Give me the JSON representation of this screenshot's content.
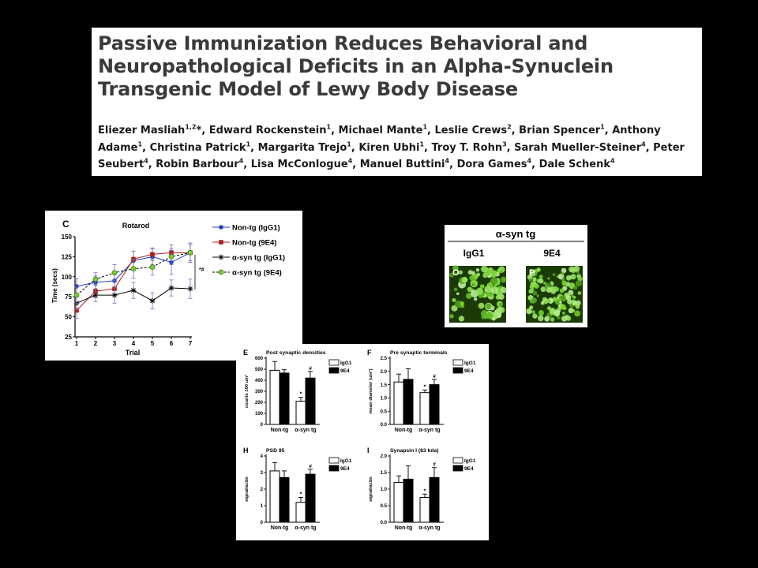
{
  "paper": {
    "title": "Passive Immunization Reduces Behavioral and Neuropathological Deficits in an Alpha-Synuclein Transgenic Model of Lewy Body Disease",
    "authors": [
      {
        "name": "Eliezer Masliah",
        "aff": "1,2",
        "mark": "*"
      },
      {
        "name": "Edward Rockenstein",
        "aff": "1"
      },
      {
        "name": "Michael Mante",
        "aff": "1"
      },
      {
        "name": "Leslie Crews",
        "aff": "2"
      },
      {
        "name": "Brian Spencer",
        "aff": "1"
      },
      {
        "name": "Anthony Adame",
        "aff": "1"
      },
      {
        "name": "Christina Patrick",
        "aff": "1"
      },
      {
        "name": "Margarita Trejo",
        "aff": "1"
      },
      {
        "name": "Kiren Ubhi",
        "aff": "1"
      },
      {
        "name": "Troy T. Rohn",
        "aff": "3"
      },
      {
        "name": "Sarah Mueller-Steiner",
        "aff": "4"
      },
      {
        "name": "Peter Seubert",
        "aff": "4"
      },
      {
        "name": "Robin Barbour",
        "aff": "4"
      },
      {
        "name": "Lisa McConlogue",
        "aff": "4"
      },
      {
        "name": "Manuel Buttini",
        "aff": "4"
      },
      {
        "name": "Dora Games",
        "aff": "4"
      },
      {
        "name": "Dale Schenk",
        "aff": "4"
      }
    ]
  },
  "colors": {
    "blue": "#1f3fbf",
    "red": "#b01e1e",
    "green": "#7ccc3a",
    "error_purple": "#7a6bb8",
    "micro_green": "#4f9a1c"
  },
  "rotarod": {
    "panel_label": "C",
    "title": "Rotarod",
    "ylabel": "Time (secs)",
    "xlabel": "Trial",
    "significance": "*#",
    "yticks": [
      "25",
      "50",
      "75",
      "100",
      "125",
      "150"
    ],
    "xticks": [
      "1",
      "2",
      "3",
      "4",
      "5",
      "6",
      "7"
    ]
  },
  "micrograph": {
    "header": "α-syn tg",
    "columns": [
      "IgG1",
      "9E4"
    ],
    "panel_labels": [
      "O",
      "P"
    ]
  },
  "bar_panels": [
    {
      "letter": "E",
      "title": "Post synaptic densities",
      "ylabel": "counts 100 um²",
      "yticks": [
        "0",
        "100",
        "200",
        "300",
        "400",
        "500",
        "600"
      ]
    },
    {
      "letter": "F",
      "title": "Pre synaptic terminals",
      "ylabel": "mean diameter (um²)",
      "yticks": [
        "0.0",
        "0.5",
        "1.0",
        "1.5",
        "2.0",
        "2.5"
      ]
    },
    {
      "letter": "H",
      "title": "PSD 95",
      "ylabel": "signal/actin",
      "yticks": [
        "0",
        "1",
        "2",
        "3",
        "4"
      ]
    },
    {
      "letter": "I",
      "title": "Synapsin I (83 kda)",
      "ylabel": "signal/actin",
      "yticks": [
        "0.0",
        "0.5",
        "1.0",
        "1.5",
        "2.0"
      ]
    }
  ],
  "bar_common": {
    "groups": [
      "Non-tg",
      "α-syn tg"
    ],
    "legend": [
      "IgG1",
      "9E4"
    ],
    "sig_star": "*",
    "sig_hash": "#"
  },
  "chart_data": [
    {
      "type": "line",
      "title": "Rotarod",
      "xlabel": "Trial",
      "ylabel": "Time (secs)",
      "x": [
        1,
        2,
        3,
        4,
        5,
        6,
        7
      ],
      "ylim": [
        25,
        150
      ],
      "legend_position": "right",
      "series": [
        {
          "name": "Non-tg (IgG1)",
          "values": [
            88,
            93,
            95,
            120,
            125,
            118,
            130
          ],
          "errors": [
            10,
            8,
            10,
            12,
            10,
            15,
            12
          ],
          "marker": "circle",
          "line": "solid",
          "color": "#1f3fbf"
        },
        {
          "name": "Non-tg (9E4)",
          "values": [
            58,
            82,
            85,
            122,
            128,
            130,
            130
          ],
          "errors": [
            10,
            8,
            8,
            10,
            8,
            10,
            10
          ],
          "marker": "square",
          "line": "solid",
          "color": "#b01e1e"
        },
        {
          "name": "α-syn tg (IgG1)",
          "values": [
            67,
            77,
            77,
            83,
            70,
            86,
            85
          ],
          "errors": [
            8,
            8,
            10,
            10,
            10,
            10,
            12
          ],
          "marker": "asterisk",
          "line": "solid",
          "color": "#000000"
        },
        {
          "name": "α-syn tg (9E4)",
          "values": [
            77,
            97,
            105,
            110,
            112,
            125,
            130
          ],
          "errors": [
            10,
            8,
            10,
            12,
            10,
            10,
            12
          ],
          "marker": "circle-open",
          "line": "dashed",
          "color": "#7ccc3a"
        }
      ]
    },
    {
      "type": "bar",
      "title": "Post synaptic densities",
      "ylabel": "counts 100 um²",
      "categories": [
        "Non-tg",
        "α-syn tg"
      ],
      "ylim": [
        0,
        600
      ],
      "series": [
        {
          "name": "IgG1",
          "values": [
            490,
            210
          ],
          "errors": [
            80,
            35
          ]
        },
        {
          "name": "9E4",
          "values": [
            465,
            420
          ],
          "errors": [
            30,
            60
          ]
        }
      ]
    },
    {
      "type": "bar",
      "title": "Pre synaptic terminals",
      "ylabel": "mean diameter (um²)",
      "categories": [
        "Non-tg",
        "α-syn tg"
      ],
      "ylim": [
        0,
        2.5
      ],
      "series": [
        {
          "name": "IgG1",
          "values": [
            1.6,
            1.2
          ],
          "errors": [
            0.3,
            0.1
          ]
        },
        {
          "name": "9E4",
          "values": [
            1.7,
            1.5
          ],
          "errors": [
            0.4,
            0.2
          ]
        }
      ]
    },
    {
      "type": "bar",
      "title": "PSD 95",
      "ylabel": "signal/actin",
      "categories": [
        "Non-tg",
        "α-syn tg"
      ],
      "ylim": [
        0,
        4
      ],
      "series": [
        {
          "name": "IgG1",
          "values": [
            3.1,
            1.2
          ],
          "errors": [
            0.5,
            0.3
          ]
        },
        {
          "name": "9E4",
          "values": [
            2.7,
            2.9
          ],
          "errors": [
            0.4,
            0.3
          ]
        }
      ]
    },
    {
      "type": "bar",
      "title": "Synapsin I (83 kda)",
      "ylabel": "signal/actin",
      "categories": [
        "Non-tg",
        "α-syn tg"
      ],
      "ylim": [
        0,
        2.0
      ],
      "series": [
        {
          "name": "IgG1",
          "values": [
            1.2,
            0.75
          ],
          "errors": [
            0.2,
            0.1
          ]
        },
        {
          "name": "9E4",
          "values": [
            1.3,
            1.35
          ],
          "errors": [
            0.4,
            0.3
          ]
        }
      ]
    }
  ]
}
